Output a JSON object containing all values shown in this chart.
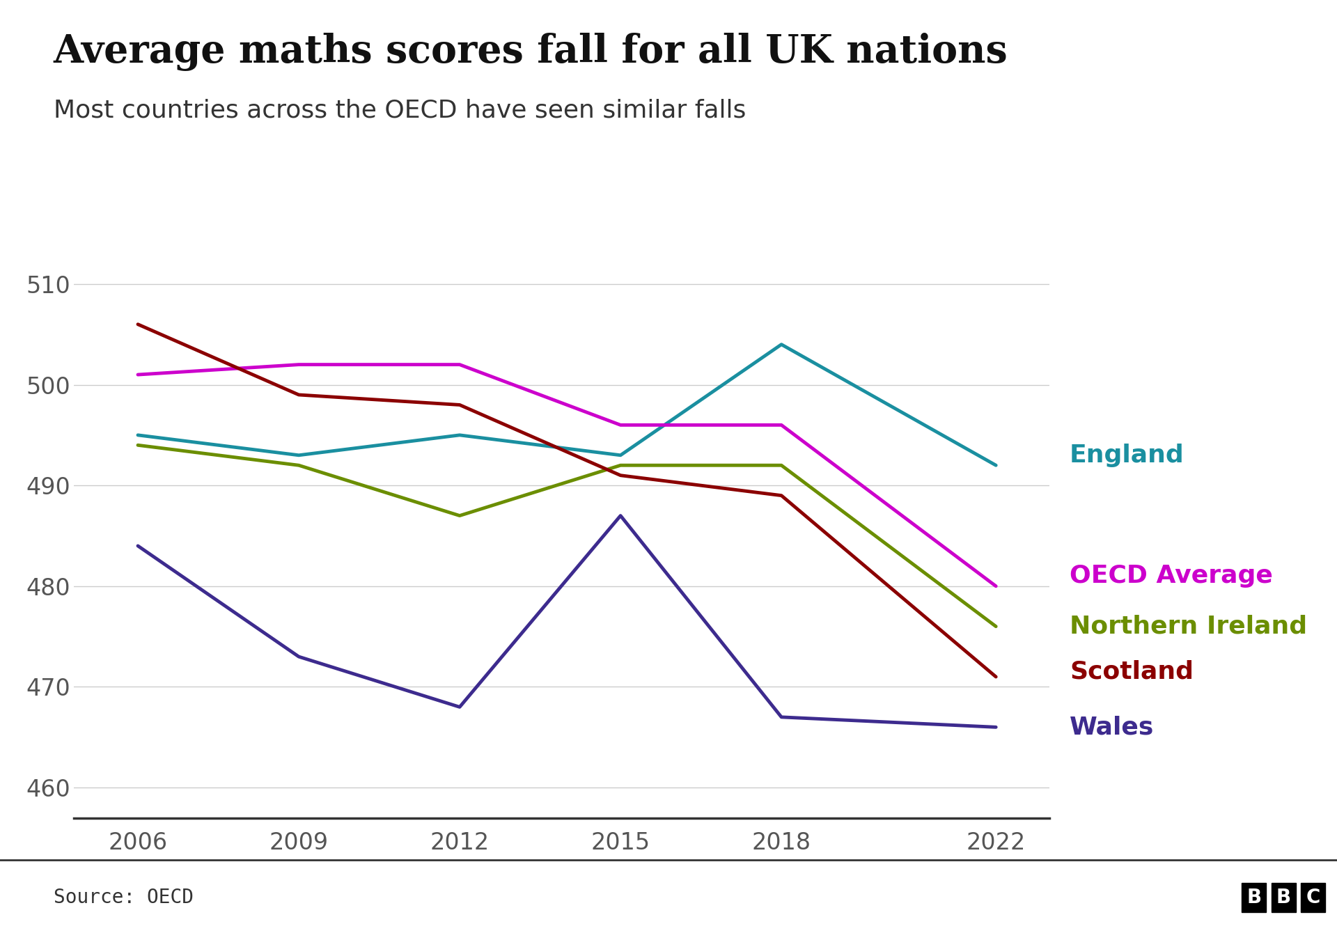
{
  "title": "Average maths scores fall for all UK nations",
  "subtitle": "Most countries across the OECD have seen similar falls",
  "source": "Source: OECD",
  "years": [
    2006,
    2009,
    2012,
    2015,
    2018,
    2022
  ],
  "series": {
    "England": {
      "values": [
        495,
        493,
        495,
        493,
        504,
        492
      ],
      "color": "#1a8fa0",
      "linewidth": 3.5
    },
    "OECD Average": {
      "values": [
        501,
        502,
        502,
        496,
        496,
        480
      ],
      "color": "#cc00cc",
      "linewidth": 3.5
    },
    "Northern Ireland": {
      "values": [
        494,
        492,
        487,
        492,
        492,
        476
      ],
      "color": "#6b8e00",
      "linewidth": 3.5
    },
    "Scotland": {
      "values": [
        506,
        499,
        498,
        491,
        489,
        471
      ],
      "color": "#8b0000",
      "linewidth": 3.5
    },
    "Wales": {
      "values": [
        484,
        473,
        468,
        487,
        467,
        466
      ],
      "color": "#3d2b8e",
      "linewidth": 3.5
    }
  },
  "legend_order": [
    "England",
    "OECD Average",
    "Northern Ireland",
    "Scotland",
    "Wales"
  ],
  "ylim": [
    457,
    513
  ],
  "yticks": [
    460,
    470,
    480,
    490,
    500,
    510
  ],
  "background_color": "#ffffff",
  "grid_color": "#cccccc",
  "title_fontsize": 40,
  "subtitle_fontsize": 26,
  "tick_fontsize": 24,
  "legend_fontsize": 26,
  "source_fontsize": 20
}
